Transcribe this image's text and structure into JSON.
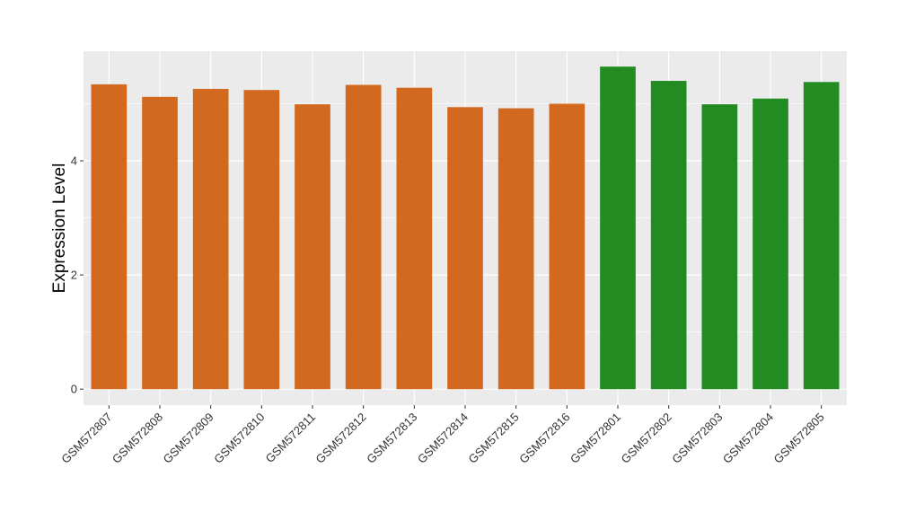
{
  "chart_data": {
    "type": "bar",
    "title": "",
    "xlabel": "",
    "ylabel": "Expression Level",
    "ylim": [
      -0.28,
      5.92
    ],
    "yticks": [
      0,
      2,
      4
    ],
    "grid": true,
    "legend": "none",
    "categories": [
      "GSM572807",
      "GSM572808",
      "GSM572809",
      "GSM572810",
      "GSM572811",
      "GSM572812",
      "GSM572813",
      "GSM572814",
      "GSM572815",
      "GSM572816",
      "GSM572801",
      "GSM572802",
      "GSM572803",
      "GSM572804",
      "GSM572805"
    ],
    "values": [
      5.34,
      5.12,
      5.26,
      5.24,
      4.99,
      5.33,
      5.28,
      4.94,
      4.92,
      5.0,
      5.65,
      5.4,
      4.99,
      5.09,
      5.38
    ],
    "groups": [
      "A",
      "A",
      "A",
      "A",
      "A",
      "A",
      "A",
      "A",
      "A",
      "A",
      "B",
      "B",
      "B",
      "B",
      "B"
    ],
    "colors": {
      "A": "#D2691E",
      "B": "#228B22"
    },
    "panel_background": "#EBEBEB",
    "grid_color": "#FFFFFF"
  }
}
